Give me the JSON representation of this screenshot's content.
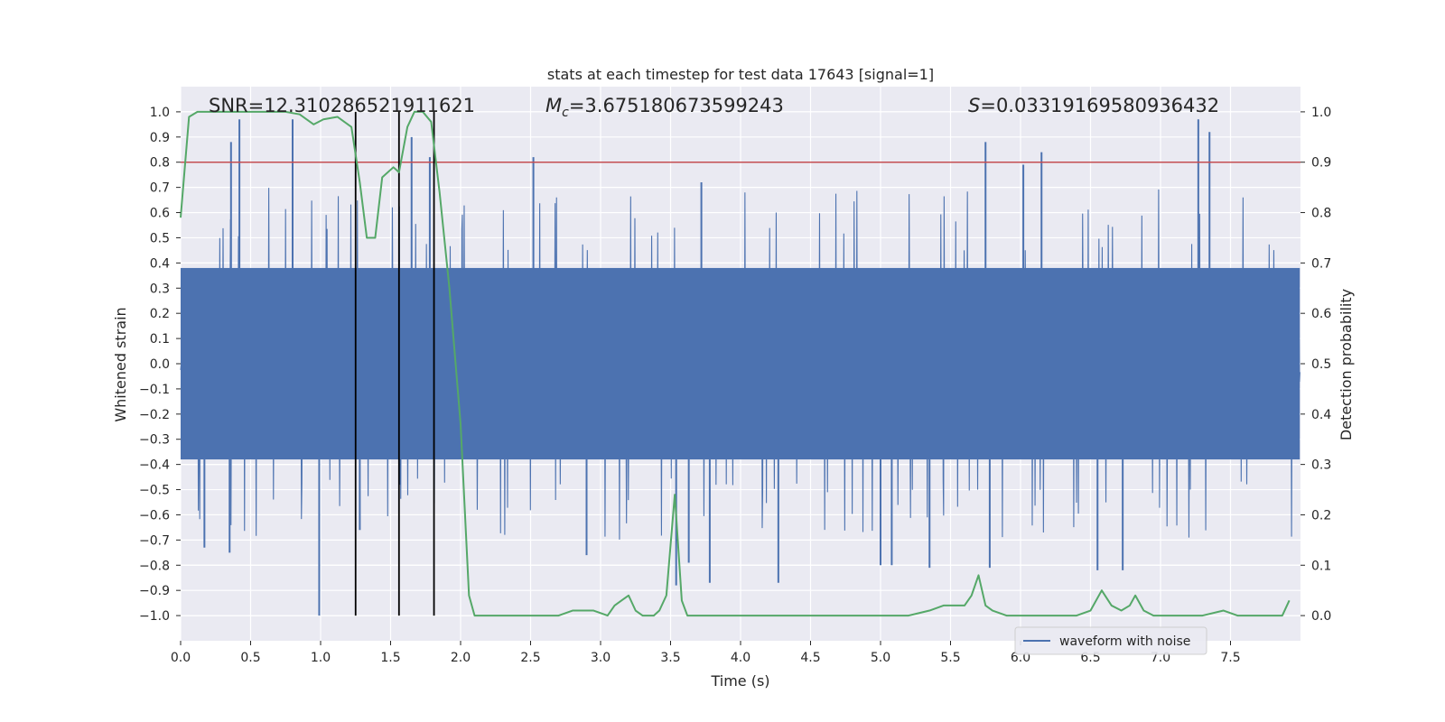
{
  "chart_data": {
    "type": "line",
    "title": "stats at each timestep for test data 17643 [signal=1]",
    "xlabel": "Time (s)",
    "ylabel": "Whitened strain",
    "ylabel_right": "Detection probability",
    "xlim": [
      0.0,
      8.0
    ],
    "ylim": [
      -1.1,
      1.1
    ],
    "ylim_right": [
      -0.05,
      1.05
    ],
    "xticks": [
      0.0,
      0.5,
      1.0,
      1.5,
      2.0,
      2.5,
      3.0,
      3.5,
      4.0,
      4.5,
      5.0,
      5.5,
      6.0,
      6.5,
      7.0,
      7.5
    ],
    "xtick_labels": [
      "0.0",
      "0.5",
      "1.0",
      "1.5",
      "2.0",
      "2.5",
      "3.0",
      "3.5",
      "4.0",
      "4.5",
      "5.0",
      "5.5",
      "6.0",
      "6.5",
      "7.0",
      "7.5"
    ],
    "yticks": [
      1.0,
      0.9,
      0.8,
      0.7,
      0.6,
      0.5,
      0.4,
      0.3,
      0.2,
      0.1,
      0.0,
      -0.1,
      -0.2,
      -0.3,
      -0.4,
      -0.5,
      -0.6,
      -0.7,
      -0.8,
      -0.9,
      -1.0
    ],
    "ytick_labels": [
      "1.0",
      "0.9",
      "0.8",
      "0.7",
      "0.6",
      "0.5",
      "0.4",
      "0.3",
      "0.2",
      "0.1",
      "0.0",
      "−0.1",
      "−0.2",
      "−0.3",
      "−0.4",
      "−0.5",
      "−0.6",
      "−0.7",
      "−0.8",
      "−0.9",
      "−1.0"
    ],
    "yticks_right": [
      1.0,
      0.9,
      0.8,
      0.7,
      0.6,
      0.5,
      0.4,
      0.3,
      0.2,
      0.1,
      0.0
    ],
    "ytick_labels_right": [
      "1.0",
      "0.9",
      "0.8",
      "0.7",
      "0.6",
      "0.5",
      "0.4",
      "0.3",
      "0.2",
      "0.1",
      "0.0"
    ],
    "grid": true,
    "annotations": {
      "snr": "SNR=12.310286521911621",
      "mc_symbol": "M",
      "mc_subscript": "c",
      "mc_value": "=3.675180673599243",
      "s_symbol": "S",
      "s_value": "=0.03319169580936432"
    },
    "threshold_probability": 0.9,
    "vertical_lines_time": [
      1.25,
      1.56,
      1.81
    ],
    "series": [
      {
        "name": "waveform with noise",
        "axis": "left",
        "style": "dense noisy strain, approx. zero-mean; per 0.05 s bins: typical envelope about +/-0.38, extreme peaks listed",
        "envelope": 0.38,
        "peaks_up": [
          [
            0.36,
            0.88
          ],
          [
            0.42,
            0.97
          ],
          [
            0.8,
            0.97
          ],
          [
            1.65,
            0.9
          ],
          [
            1.78,
            0.82
          ],
          [
            2.52,
            0.82
          ],
          [
            3.72,
            0.72
          ],
          [
            5.75,
            0.88
          ],
          [
            6.02,
            0.79
          ],
          [
            6.15,
            0.84
          ],
          [
            7.27,
            0.97
          ],
          [
            7.35,
            0.92
          ]
        ],
        "peaks_down": [
          [
            0.17,
            -0.73
          ],
          [
            0.35,
            -0.75
          ],
          [
            0.99,
            -1.0
          ],
          [
            1.28,
            -0.66
          ],
          [
            2.9,
            -0.76
          ],
          [
            3.54,
            -0.88
          ],
          [
            3.63,
            -0.79
          ],
          [
            3.78,
            -0.87
          ],
          [
            4.27,
            -0.87
          ],
          [
            5.0,
            -0.8
          ],
          [
            5.08,
            -0.8
          ],
          [
            5.35,
            -0.81
          ],
          [
            5.78,
            -0.81
          ],
          [
            6.55,
            -0.82
          ],
          [
            6.73,
            -0.82
          ]
        ]
      },
      {
        "name": "detection probability",
        "axis": "right",
        "x": [
          0.0,
          0.06,
          0.12,
          0.25,
          0.5,
          0.75,
          0.85,
          0.95,
          1.02,
          1.12,
          1.17,
          1.22,
          1.28,
          1.33,
          1.39,
          1.44,
          1.52,
          1.56,
          1.62,
          1.67,
          1.73,
          1.79,
          1.85,
          1.92,
          2.0,
          2.06,
          2.1,
          2.2,
          2.3,
          2.5,
          2.7,
          2.8,
          2.95,
          3.05,
          3.1,
          3.15,
          3.2,
          3.25,
          3.3,
          3.38,
          3.42,
          3.47,
          3.53,
          3.58,
          3.62,
          3.7,
          3.8,
          4.0,
          4.3,
          4.8,
          5.0,
          5.2,
          5.35,
          5.45,
          5.5,
          5.6,
          5.65,
          5.7,
          5.75,
          5.8,
          5.9,
          6.0,
          6.2,
          6.4,
          6.5,
          6.58,
          6.65,
          6.72,
          6.78,
          6.82,
          6.88,
          6.95,
          7.0,
          7.1,
          7.2,
          7.3,
          7.45,
          7.55,
          7.7,
          7.8,
          7.87,
          7.92
        ],
        "values": [
          0.79,
          0.99,
          1.0,
          1.0,
          1.0,
          1.0,
          0.995,
          0.975,
          0.985,
          0.99,
          0.98,
          0.97,
          0.86,
          0.75,
          0.75,
          0.87,
          0.89,
          0.88,
          0.97,
          1.0,
          1.0,
          0.98,
          0.84,
          0.65,
          0.38,
          0.04,
          0.0,
          0.0,
          0.0,
          0.0,
          0.0,
          0.01,
          0.01,
          0.0,
          0.02,
          0.03,
          0.04,
          0.01,
          0.0,
          0.0,
          0.01,
          0.04,
          0.24,
          0.03,
          0.0,
          0.0,
          0.0,
          0.0,
          0.0,
          0.0,
          0.0,
          0.0,
          0.01,
          0.02,
          0.02,
          0.02,
          0.04,
          0.08,
          0.02,
          0.01,
          0.0,
          0.0,
          0.0,
          0.0,
          0.01,
          0.05,
          0.02,
          0.01,
          0.02,
          0.04,
          0.01,
          0.0,
          0.0,
          0.0,
          0.0,
          0.0,
          0.01,
          0.0,
          0.0,
          0.0,
          0.0,
          0.03
        ]
      }
    ],
    "legend": {
      "entries": [
        "waveform with noise"
      ],
      "placement": "lower-right"
    },
    "colors": {
      "axes_background": "#EAEAF2",
      "grid": "#ffffff",
      "waveform": "#4C72B0",
      "probability": "#55A868",
      "threshold": "#C44E52",
      "vertical_lines": "#000000",
      "text": "#262626"
    }
  }
}
